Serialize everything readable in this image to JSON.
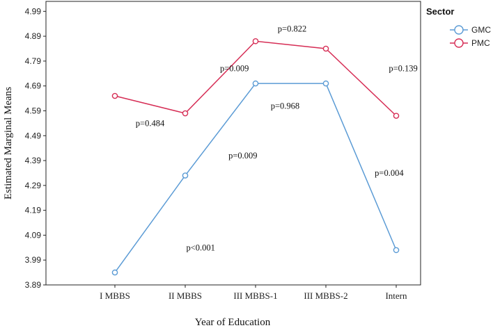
{
  "chart_data": {
    "type": "line",
    "xlabel": "Year of Education",
    "ylabel": "Estimated Marginal Means",
    "ylim": [
      3.89,
      5.03
    ],
    "yticks": [
      3.89,
      3.99,
      4.09,
      4.19,
      4.29,
      4.39,
      4.49,
      4.59,
      4.69,
      4.79,
      4.89,
      4.99
    ],
    "ytick_labels": [
      "3.89",
      "3.99",
      "4.09",
      "4.19",
      "4.29",
      "4.39",
      "4.49",
      "4.59",
      "4.69",
      "4.79",
      "4.89",
      "4.99"
    ],
    "categories": [
      "I MBBS",
      "II MBBS",
      "III MBBS-1",
      "III MBBS-2",
      "Intern"
    ],
    "legend_title": "Sector",
    "legend_position": "right",
    "grid": false,
    "series": [
      {
        "name": "GMC",
        "color": "#5b9bd5",
        "values": [
          3.94,
          4.33,
          4.7,
          4.7,
          4.03
        ]
      },
      {
        "name": "PMC",
        "color": "#d62d55",
        "values": [
          4.65,
          4.58,
          4.87,
          4.84,
          4.57
        ]
      }
    ],
    "annotations": [
      {
        "text": "p=0.484",
        "x": 0.5,
        "y": 4.54
      },
      {
        "text": "p=0.009",
        "x": 1.7,
        "y": 4.76
      },
      {
        "text": "p=0.822",
        "x": 2.52,
        "y": 4.92
      },
      {
        "text": "p=0.139",
        "x": 4.1,
        "y": 4.76
      },
      {
        "text": "p=0.968",
        "x": 2.42,
        "y": 4.61
      },
      {
        "text": "p=0.009",
        "x": 1.82,
        "y": 4.41
      },
      {
        "text": "p=0.004",
        "x": 3.9,
        "y": 4.34
      },
      {
        "text": "p<0.001",
        "x": 1.22,
        "y": 4.04
      }
    ]
  }
}
